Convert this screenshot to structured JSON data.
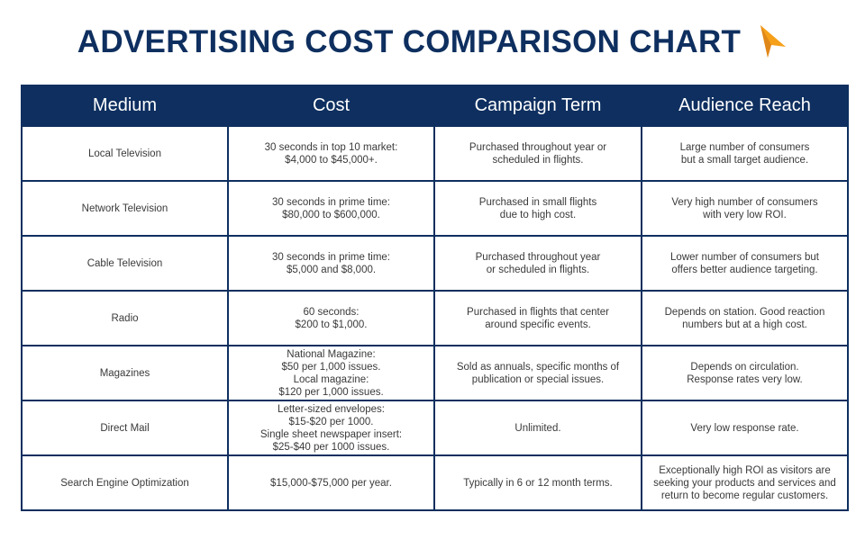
{
  "title": "ADVERTISING COST COMPARISON CHART",
  "colors": {
    "navy": "#0e2f5f",
    "orange": "#f6a01a",
    "text": "#3a3a3a"
  },
  "logo_icon": "orange-arrow-cursor-icon",
  "table": {
    "headers": [
      "Medium",
      "Cost",
      "Campaign Term",
      "Audience Reach"
    ],
    "rows": [
      {
        "medium": "Local Television",
        "cost": "30 seconds in top 10 market:\n$4,000 to $45,000+.",
        "term": "Purchased throughout year or\nscheduled in flights.",
        "reach": "Large number of consumers\nbut a small target audience."
      },
      {
        "medium": "Network Television",
        "cost": "30 seconds in prime time:\n$80,000 to $600,000.",
        "term": "Purchased in small flights\ndue to high cost.",
        "reach": "Very high number of consumers\nwith very low ROI."
      },
      {
        "medium": "Cable Television",
        "cost": "30 seconds in prime time:\n$5,000 and $8,000.",
        "term": "Purchased throughout year\nor scheduled in flights.",
        "reach": "Lower number of consumers but\noffers better audience targeting."
      },
      {
        "medium": "Radio",
        "cost": "60 seconds:\n$200 to $1,000.",
        "term": "Purchased in flights that center\naround specific events.",
        "reach": "Depends on station. Good reaction\nnumbers but at a high cost."
      },
      {
        "medium": "Magazines",
        "cost": "National Magazine:\n$50 per 1,000 issues.\nLocal magazine:\n$120 per 1,000 issues.",
        "term": "Sold as annuals, specific months of\npublication or special issues.",
        "reach": "Depends on circulation.\nResponse rates very low."
      },
      {
        "medium": "Direct Mail",
        "cost": "Letter-sized envelopes:\n$15-$20 per 1000.\nSingle sheet newspaper insert:\n$25-$40 per 1000 issues.",
        "term": "Unlimited.",
        "reach": "Very low response rate."
      },
      {
        "medium": "Search Engine Optimization",
        "cost": "$15,000-$75,000 per year.",
        "term": "Typically in 6 or 12 month terms.",
        "reach": "Exceptionally high ROI as visitors are\nseeking your products and services and\nreturn to become regular customers."
      }
    ]
  }
}
